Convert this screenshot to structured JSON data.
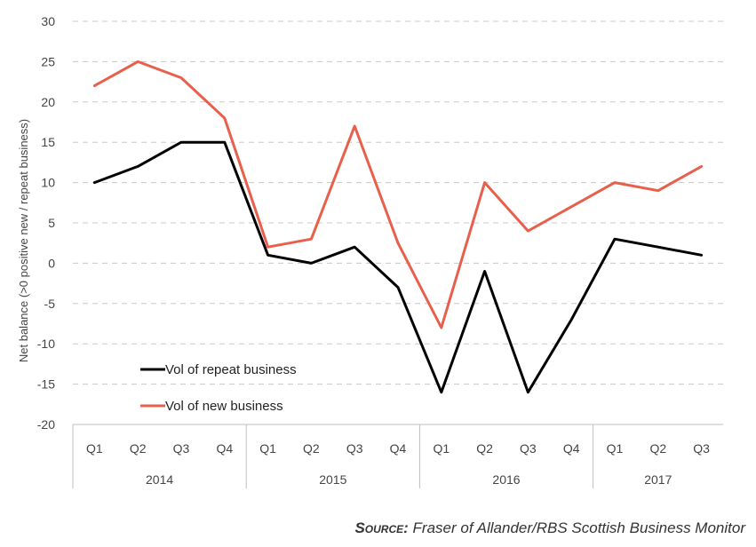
{
  "chart_data": {
    "type": "line",
    "title": "",
    "ylabel": "Net balance (>0 positive new / repeat business)",
    "xlabel": "",
    "ylim": [
      -20,
      30
    ],
    "yticks": [
      30,
      25,
      20,
      15,
      10,
      5,
      0,
      -5,
      -10,
      -15,
      -20
    ],
    "grid": true,
    "legend_position": "bottom-left",
    "categories": [
      "Q1",
      "Q2",
      "Q3",
      "Q4",
      "Q1",
      "Q2",
      "Q3",
      "Q4",
      "Q1",
      "Q2",
      "Q3",
      "Q4",
      "Q1",
      "Q2",
      "Q3"
    ],
    "years": [
      {
        "label": "2014",
        "quarters": 4
      },
      {
        "label": "2015",
        "quarters": 4
      },
      {
        "label": "2016",
        "quarters": 4
      },
      {
        "label": "2017",
        "quarters": 3
      }
    ],
    "series": [
      {
        "name": "Vol of repeat business",
        "color": "#000000",
        "values": [
          10,
          12,
          15,
          15,
          1,
          0,
          2,
          -3,
          -16,
          -1,
          -16,
          -7,
          3,
          2,
          1
        ]
      },
      {
        "name": "Vol of new business",
        "color": "#e8604c",
        "values": [
          22,
          25,
          23,
          18,
          2,
          3,
          17,
          2.5,
          -8,
          10,
          4,
          7,
          10,
          9,
          12
        ]
      }
    ]
  },
  "source": {
    "label": "Source:",
    "text": "Fraser of Allander/RBS Scottish Business Monitor"
  }
}
